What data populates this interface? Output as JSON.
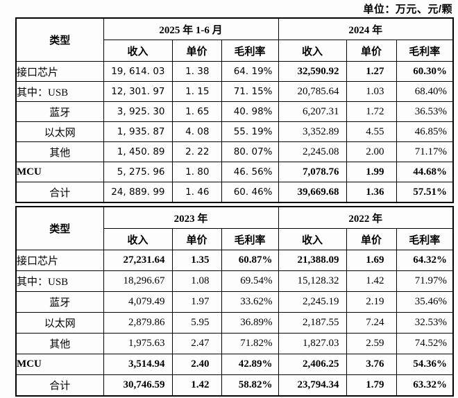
{
  "unit_note": "单位：万元、元/颗",
  "colors": {
    "text": "#000000",
    "border": "#000000",
    "background": "#fdfdfd"
  },
  "tables": [
    {
      "type_label": "类型",
      "periods": [
        "2025 年 1-6 月",
        "2024 年"
      ],
      "sub_headers": [
        "收入",
        "单价",
        "毛利率"
      ],
      "sans_first_half": true,
      "rows": [
        {
          "label": "接口芯片",
          "align": "left",
          "label_bold": false,
          "cells": [
            "19, 614. 03",
            "1. 38",
            "64. 19%",
            "32,590.92",
            "1.27",
            "60.30%"
          ],
          "bold": [
            0,
            0,
            0,
            1,
            1,
            1
          ]
        },
        {
          "label": "其中：USB",
          "align": "left",
          "label_bold": false,
          "cells": [
            "12, 301. 97",
            "1. 15",
            "71. 15%",
            "20,785.64",
            "1.03",
            "68.40%"
          ],
          "bold": [
            0,
            0,
            0,
            0,
            0,
            0
          ]
        },
        {
          "label": "蓝牙",
          "align": "center",
          "label_bold": false,
          "cells": [
            "3, 925. 30",
            "1. 65",
            "40. 98%",
            "6,207.31",
            "1.72",
            "36.53%"
          ],
          "bold": [
            0,
            0,
            0,
            0,
            0,
            0
          ]
        },
        {
          "label": "以太网",
          "align": "center",
          "label_bold": false,
          "cells": [
            "1, 935. 87",
            "4. 08",
            "55. 19%",
            "3,352.89",
            "4.55",
            "46.85%"
          ],
          "bold": [
            0,
            0,
            0,
            0,
            0,
            0
          ]
        },
        {
          "label": "其他",
          "align": "center",
          "label_bold": false,
          "cells": [
            "1, 450. 89",
            "2. 22",
            "80. 07%",
            "2,245.08",
            "2.00",
            "71.17%"
          ],
          "bold": [
            0,
            0,
            0,
            0,
            0,
            0
          ]
        },
        {
          "label": "MCU",
          "align": "left",
          "label_bold": true,
          "cells": [
            "5, 275. 96",
            "1. 80",
            "46. 56%",
            "7,078.76",
            "1.99",
            "44.68%"
          ],
          "bold": [
            0,
            0,
            0,
            1,
            1,
            1
          ]
        },
        {
          "label": "合计",
          "align": "center",
          "label_bold": false,
          "cells": [
            "24, 889. 99",
            "1. 46",
            "60. 46%",
            "39,669.68",
            "1.36",
            "57.51%"
          ],
          "bold": [
            0,
            0,
            0,
            1,
            1,
            1
          ]
        }
      ]
    },
    {
      "type_label": "类型",
      "periods": [
        "2023 年",
        "2022 年"
      ],
      "sub_headers": [
        "收入",
        "单价",
        "毛利率"
      ],
      "sans_first_half": false,
      "rows": [
        {
          "label": "接口芯片",
          "align": "left",
          "label_bold": false,
          "cells": [
            "27,231.64",
            "1.35",
            "60.87%",
            "21,388.09",
            "1.69",
            "64.32%"
          ],
          "bold": [
            1,
            1,
            1,
            1,
            1,
            1
          ]
        },
        {
          "label": "其中：USB",
          "align": "left",
          "label_bold": false,
          "cells": [
            "18,296.67",
            "1.08",
            "69.54%",
            "15,128.32",
            "1.42",
            "71.97%"
          ],
          "bold": [
            0,
            0,
            0,
            0,
            0,
            0
          ]
        },
        {
          "label": "蓝牙",
          "align": "center",
          "label_bold": false,
          "cells": [
            "4,079.49",
            "1.97",
            "33.62%",
            "2,245.19",
            "2.19",
            "35.46%"
          ],
          "bold": [
            0,
            0,
            0,
            0,
            0,
            0
          ]
        },
        {
          "label": "以太网",
          "align": "center",
          "label_bold": false,
          "cells": [
            "2,879.86",
            "5.95",
            "36.89%",
            "2,187.55",
            "7.24",
            "32.53%"
          ],
          "bold": [
            0,
            0,
            0,
            0,
            0,
            0
          ]
        },
        {
          "label": "其他",
          "align": "center",
          "label_bold": false,
          "cells": [
            "1,975.63",
            "2.47",
            "71.82%",
            "1,827.03",
            "2.59",
            "74.52%"
          ],
          "bold": [
            0,
            0,
            0,
            0,
            0,
            0
          ]
        },
        {
          "label": "MCU",
          "align": "left",
          "label_bold": true,
          "cells": [
            "3,514.94",
            "2.40",
            "42.89%",
            "2,406.25",
            "3.76",
            "54.36%"
          ],
          "bold": [
            1,
            1,
            1,
            1,
            1,
            1
          ]
        },
        {
          "label": "合计",
          "align": "center",
          "label_bold": false,
          "cells": [
            "30,746.59",
            "1.42",
            "58.82%",
            "23,794.34",
            "1.79",
            "63.32%"
          ],
          "bold": [
            1,
            1,
            1,
            1,
            1,
            1
          ]
        }
      ]
    }
  ]
}
